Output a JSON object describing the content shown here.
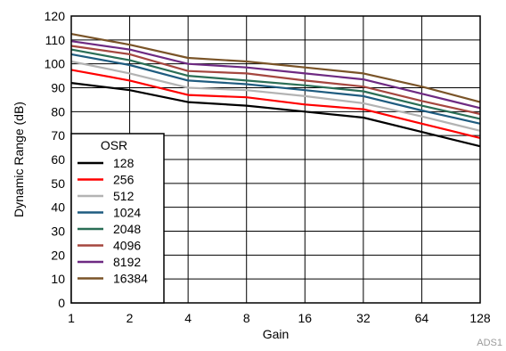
{
  "chart_data": {
    "type": "line",
    "xlabel": "Gain",
    "ylabel": "Dynamic Range (dB)",
    "x": [
      "1",
      "2",
      "4",
      "8",
      "16",
      "32",
      "64",
      "128"
    ],
    "x_scale": "log2",
    "ylim": [
      0,
      120
    ],
    "yticks": [
      "0",
      "10",
      "20",
      "30",
      "40",
      "50",
      "60",
      "70",
      "80",
      "90",
      "100",
      "110",
      "120"
    ],
    "grid": true,
    "legend": {
      "title": "OSR",
      "position": "bottom-left"
    },
    "series": [
      {
        "name": "128",
        "color": "#000000",
        "values": [
          92,
          89,
          84,
          82.5,
          80,
          77.5,
          71.5,
          65.5
        ]
      },
      {
        "name": "256",
        "color": "#ff0000",
        "values": [
          97.5,
          93,
          87,
          86,
          83,
          81,
          75,
          69
        ]
      },
      {
        "name": "512",
        "color": "#b3b3b3",
        "values": [
          101,
          96,
          90,
          89,
          86.5,
          83.5,
          78,
          72
        ]
      },
      {
        "name": "1024",
        "color": "#1f5c80",
        "values": [
          104,
          99.5,
          93,
          91.5,
          89,
          86.5,
          80.5,
          75
        ]
      },
      {
        "name": "2048",
        "color": "#2a6e56",
        "values": [
          106,
          101.5,
          95,
          93,
          91,
          88.5,
          82.5,
          77
        ]
      },
      {
        "name": "4096",
        "color": "#a5473f",
        "values": [
          107.5,
          104,
          97,
          96,
          93,
          90.5,
          84.5,
          79
        ]
      },
      {
        "name": "8192",
        "color": "#6e2a82",
        "values": [
          109.5,
          106,
          100,
          98.5,
          96,
          93.5,
          87.5,
          81.5
        ]
      },
      {
        "name": "16384",
        "color": "#7a5428",
        "values": [
          112.5,
          108,
          102.5,
          101,
          98.5,
          96,
          90.5,
          84
        ]
      }
    ],
    "footnote": "ADS1"
  }
}
